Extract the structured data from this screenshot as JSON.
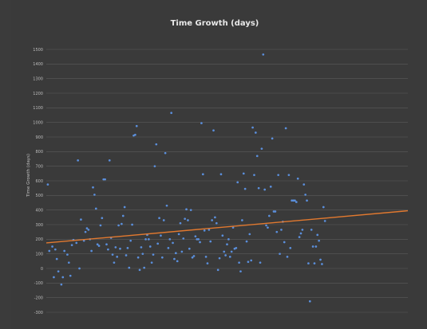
{
  "chart_data": {
    "type": "scatter",
    "title": "Time Growth (days)",
    "xlabel": "",
    "ylabel": "Time Growth (days)",
    "ylim": [
      -300,
      1500
    ],
    "yticks": [
      -300,
      -200,
      -100,
      0,
      100,
      200,
      300,
      400,
      500,
      600,
      700,
      800,
      900,
      1000,
      1100,
      1200,
      1300,
      1400,
      1500
    ],
    "xlim": [
      0,
      240
    ],
    "grid": true,
    "colors": {
      "points": "#5b8fdc",
      "trend": "#e2792f",
      "grid": "#5a5a5a",
      "background": "#3a3a3a"
    },
    "trendline": {
      "x": [
        0,
        240
      ],
      "y": [
        175,
        395
      ]
    },
    "series": [
      {
        "values": [
          [
            1,
            575
          ],
          [
            2,
            120
          ],
          [
            4,
            150
          ],
          [
            5,
            -60
          ],
          [
            6,
            130
          ],
          [
            7,
            65
          ],
          [
            8,
            -20
          ],
          [
            10,
            -110
          ],
          [
            11,
            -60
          ],
          [
            12,
            120
          ],
          [
            14,
            95
          ],
          [
            15,
            40
          ],
          [
            16,
            -50
          ],
          [
            17,
            160
          ],
          [
            18,
            195
          ],
          [
            20,
            175
          ],
          [
            21,
            740
          ],
          [
            22,
            0
          ],
          [
            23,
            335
          ],
          [
            25,
            190
          ],
          [
            26,
            250
          ],
          [
            27,
            275
          ],
          [
            28,
            265
          ],
          [
            29,
            200
          ],
          [
            30,
            120
          ],
          [
            31,
            555
          ],
          [
            32,
            505
          ],
          [
            33,
            410
          ],
          [
            34,
            165
          ],
          [
            35,
            155
          ],
          [
            36,
            295
          ],
          [
            37,
            345
          ],
          [
            38,
            610
          ],
          [
            39,
            610
          ],
          [
            40,
            165
          ],
          [
            41,
            130
          ],
          [
            42,
            740
          ],
          [
            43,
            210
          ],
          [
            44,
            95
          ],
          [
            45,
            40
          ],
          [
            46,
            145
          ],
          [
            47,
            80
          ],
          [
            48,
            295
          ],
          [
            49,
            135
          ],
          [
            50,
            305
          ],
          [
            51,
            360
          ],
          [
            52,
            420
          ],
          [
            53,
            90
          ],
          [
            54,
            140
          ],
          [
            55,
            5
          ],
          [
            56,
            190
          ],
          [
            57,
            300
          ],
          [
            58,
            910
          ],
          [
            59,
            915
          ],
          [
            60,
            975
          ],
          [
            61,
            75
          ],
          [
            62,
            -10
          ],
          [
            63,
            145
          ],
          [
            64,
            100
          ],
          [
            65,
            5
          ],
          [
            66,
            200
          ],
          [
            67,
            230
          ],
          [
            68,
            200
          ],
          [
            69,
            150
          ],
          [
            70,
            40
          ],
          [
            71,
            95
          ],
          [
            72,
            700
          ],
          [
            73,
            850
          ],
          [
            74,
            170
          ],
          [
            75,
            345
          ],
          [
            76,
            225
          ],
          [
            77,
            75
          ],
          [
            78,
            330
          ],
          [
            79,
            790
          ],
          [
            80,
            430
          ],
          [
            81,
            140
          ],
          [
            82,
            200
          ],
          [
            83,
            1065
          ],
          [
            84,
            175
          ],
          [
            85,
            65
          ],
          [
            86,
            105
          ],
          [
            87,
            50
          ],
          [
            88,
            235
          ],
          [
            89,
            310
          ],
          [
            90,
            115
          ],
          [
            91,
            205
          ],
          [
            92,
            340
          ],
          [
            93,
            405
          ],
          [
            94,
            330
          ],
          [
            95,
            135
          ],
          [
            96,
            400
          ],
          [
            97,
            75
          ],
          [
            98,
            85
          ],
          [
            99,
            220
          ],
          [
            100,
            200
          ],
          [
            101,
            200
          ],
          [
            102,
            180
          ],
          [
            103,
            995
          ],
          [
            104,
            645
          ],
          [
            105,
            260
          ],
          [
            106,
            80
          ],
          [
            107,
            35
          ],
          [
            108,
            265
          ],
          [
            109,
            185
          ],
          [
            110,
            330
          ],
          [
            111,
            945
          ],
          [
            112,
            350
          ],
          [
            113,
            310
          ],
          [
            114,
            -10
          ],
          [
            115,
            70
          ],
          [
            116,
            645
          ],
          [
            117,
            225
          ],
          [
            118,
            115
          ],
          [
            119,
            90
          ],
          [
            120,
            165
          ],
          [
            121,
            200
          ],
          [
            122,
            80
          ],
          [
            123,
            115
          ],
          [
            124,
            280
          ],
          [
            125,
            135
          ],
          [
            126,
            140
          ],
          [
            127,
            590
          ],
          [
            128,
            40
          ],
          [
            129,
            -20
          ],
          [
            130,
            330
          ],
          [
            131,
            650
          ],
          [
            132,
            545
          ],
          [
            133,
            185
          ],
          [
            134,
            45
          ],
          [
            135,
            235
          ],
          [
            136,
            55
          ],
          [
            137,
            965
          ],
          [
            138,
            640
          ],
          [
            139,
            930
          ],
          [
            140,
            770
          ],
          [
            141,
            550
          ],
          [
            142,
            40
          ],
          [
            143,
            820
          ],
          [
            144,
            1465
          ],
          [
            145,
            540
          ],
          [
            146,
            295
          ],
          [
            147,
            280
          ],
          [
            148,
            360
          ],
          [
            149,
            560
          ],
          [
            150,
            890
          ],
          [
            151,
            390
          ],
          [
            152,
            390
          ],
          [
            153,
            250
          ],
          [
            154,
            640
          ],
          [
            155,
            100
          ],
          [
            156,
            265
          ],
          [
            157,
            320
          ],
          [
            158,
            180
          ],
          [
            159,
            960
          ],
          [
            160,
            80
          ],
          [
            161,
            640
          ],
          [
            162,
            140
          ],
          [
            163,
            465
          ],
          [
            164,
            465
          ],
          [
            165,
            465
          ],
          [
            166,
            455
          ],
          [
            167,
            615
          ],
          [
            168,
            215
          ],
          [
            169,
            240
          ],
          [
            170,
            265
          ],
          [
            171,
            575
          ],
          [
            172,
            505
          ],
          [
            173,
            465
          ],
          [
            174,
            35
          ],
          [
            175,
            -225
          ],
          [
            176,
            265
          ],
          [
            177,
            150
          ],
          [
            178,
            35
          ],
          [
            179,
            150
          ],
          [
            180,
            230
          ],
          [
            181,
            190
          ],
          [
            182,
            60
          ],
          [
            183,
            30
          ],
          [
            184,
            420
          ],
          [
            185,
            325
          ]
        ]
      }
    ]
  }
}
